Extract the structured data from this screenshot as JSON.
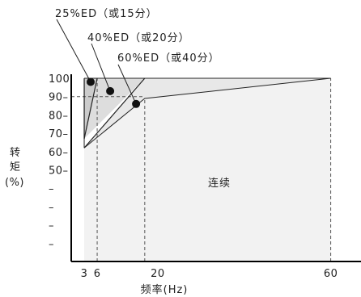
{
  "chart_data": {
    "type": "area",
    "title": "",
    "xlabel": "频率(Hz)",
    "ylabel_lines": [
      "转",
      "矩",
      "(%)"
    ],
    "xlim": [
      0,
      67
    ],
    "ylim": [
      0,
      100
    ],
    "x_ticks": [
      {
        "value": 3,
        "label": "3"
      },
      {
        "value": 6,
        "label": "6"
      },
      {
        "value": 20,
        "label": "20"
      },
      {
        "value": 60,
        "label": "60"
      }
    ],
    "y_ticks": [
      {
        "value": 100,
        "label": "100"
      },
      {
        "value": 90,
        "label": "90–"
      },
      {
        "value": 80,
        "label": "80–"
      },
      {
        "value": 70,
        "label": "70–"
      },
      {
        "value": 60,
        "label": "60–"
      },
      {
        "value": 50,
        "label": "50–"
      },
      {
        "value": 40,
        "label": "–"
      },
      {
        "value": 30,
        "label": "–"
      },
      {
        "value": 20,
        "label": "–"
      },
      {
        "value": 10,
        "label": "–"
      }
    ],
    "continuous": {
      "label": "连续",
      "points": [
        [
          3,
          62
        ],
        [
          17,
          89
        ],
        [
          60,
          100
        ]
      ]
    },
    "regions": [
      {
        "id": "ed25",
        "label": "25%ED（或15分）",
        "fill": "#cccccc",
        "points": [
          [
            3,
            100
          ],
          [
            6,
            100
          ],
          [
            3,
            67
          ]
        ]
      },
      {
        "id": "ed40",
        "label": "40%ED（或20分）",
        "fill": "#dddddd",
        "points": [
          [
            6,
            100
          ],
          [
            17,
            100
          ],
          [
            3,
            67
          ]
        ]
      },
      {
        "id": "ed60",
        "label": "60%ED（或40分）",
        "fill": "#e8e8e8",
        "points": [
          [
            17,
            100
          ],
          [
            60,
            100
          ],
          [
            17,
            89
          ],
          [
            3,
            62
          ]
        ]
      }
    ],
    "continuous_fill": "#f2f2f2",
    "guides": [
      {
        "axis": "x",
        "value": 6,
        "from": 0,
        "to": 100
      },
      {
        "axis": "x",
        "value": 17,
        "from": 0,
        "to": 89
      },
      {
        "axis": "x",
        "value": 60,
        "from": 0,
        "to": 100
      },
      {
        "axis": "y",
        "value": 90,
        "from": 0,
        "to": 17
      }
    ],
    "markers": [
      {
        "id": "ed25",
        "x": 4.5,
        "y": 98
      },
      {
        "id": "ed40",
        "x": 9,
        "y": 93
      },
      {
        "id": "ed60",
        "x": 15,
        "y": 86
      }
    ],
    "colors": {
      "axis": "#000000",
      "lines": "#222222",
      "guides": "#555555",
      "marker": "#111111"
    }
  }
}
